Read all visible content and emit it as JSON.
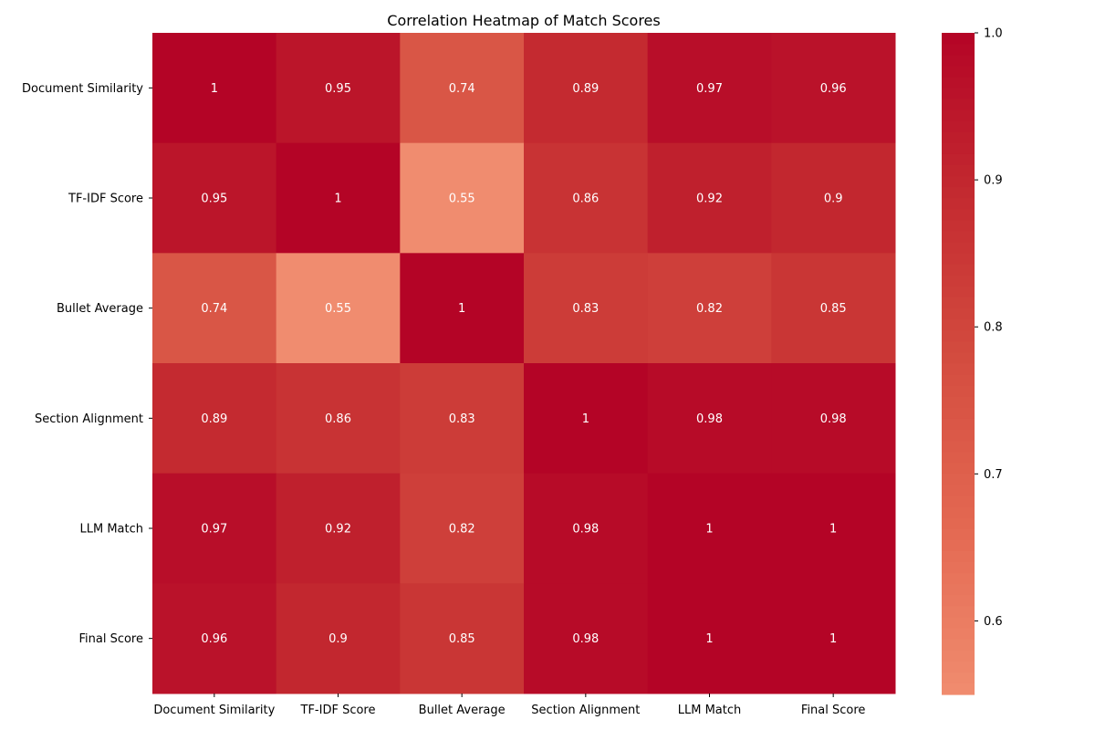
{
  "chart_data": {
    "type": "heatmap",
    "title": "Correlation Heatmap of Match Scores",
    "x_categories": [
      "Document Similarity",
      "TF-IDF Score",
      "Bullet Average",
      "Section Alignment",
      "LLM Match",
      "Final Score"
    ],
    "y_categories": [
      "Document Similarity",
      "TF-IDF Score",
      "Bullet Average",
      "Section Alignment",
      "LLM Match",
      "Final Score"
    ],
    "values": [
      [
        1.0,
        0.95,
        0.74,
        0.89,
        0.97,
        0.96
      ],
      [
        0.95,
        1.0,
        0.55,
        0.86,
        0.92,
        0.9
      ],
      [
        0.74,
        0.55,
        1.0,
        0.83,
        0.82,
        0.85
      ],
      [
        0.89,
        0.86,
        0.83,
        1.0,
        0.98,
        0.98
      ],
      [
        0.97,
        0.92,
        0.82,
        0.98,
        1.0,
        1.0
      ],
      [
        0.96,
        0.9,
        0.85,
        0.98,
        1.0,
        1.0
      ]
    ],
    "annotations": [
      [
        "1",
        "0.95",
        "0.74",
        "0.89",
        "0.97",
        "0.96"
      ],
      [
        "0.95",
        "1",
        "0.55",
        "0.86",
        "0.92",
        "0.9"
      ],
      [
        "0.74",
        "0.55",
        "1",
        "0.83",
        "0.82",
        "0.85"
      ],
      [
        "0.89",
        "0.86",
        "0.83",
        "1",
        "0.98",
        "0.98"
      ],
      [
        "0.97",
        "0.92",
        "0.82",
        "0.98",
        "1",
        "1"
      ],
      [
        "0.96",
        "0.9",
        "0.85",
        "0.98",
        "1",
        "1"
      ]
    ],
    "colorbar": {
      "min": 0.55,
      "max": 1.0,
      "ticks": [
        0.6,
        0.7,
        0.8,
        0.9,
        1.0
      ],
      "tick_labels": [
        "0.6",
        "0.7",
        "0.8",
        "0.9",
        "1.0"
      ],
      "colormap": "coolwarm (upper half)",
      "color_low": "#f08c6f",
      "color_high": "#b40426"
    },
    "annotation_text_color": "#ffffff"
  }
}
